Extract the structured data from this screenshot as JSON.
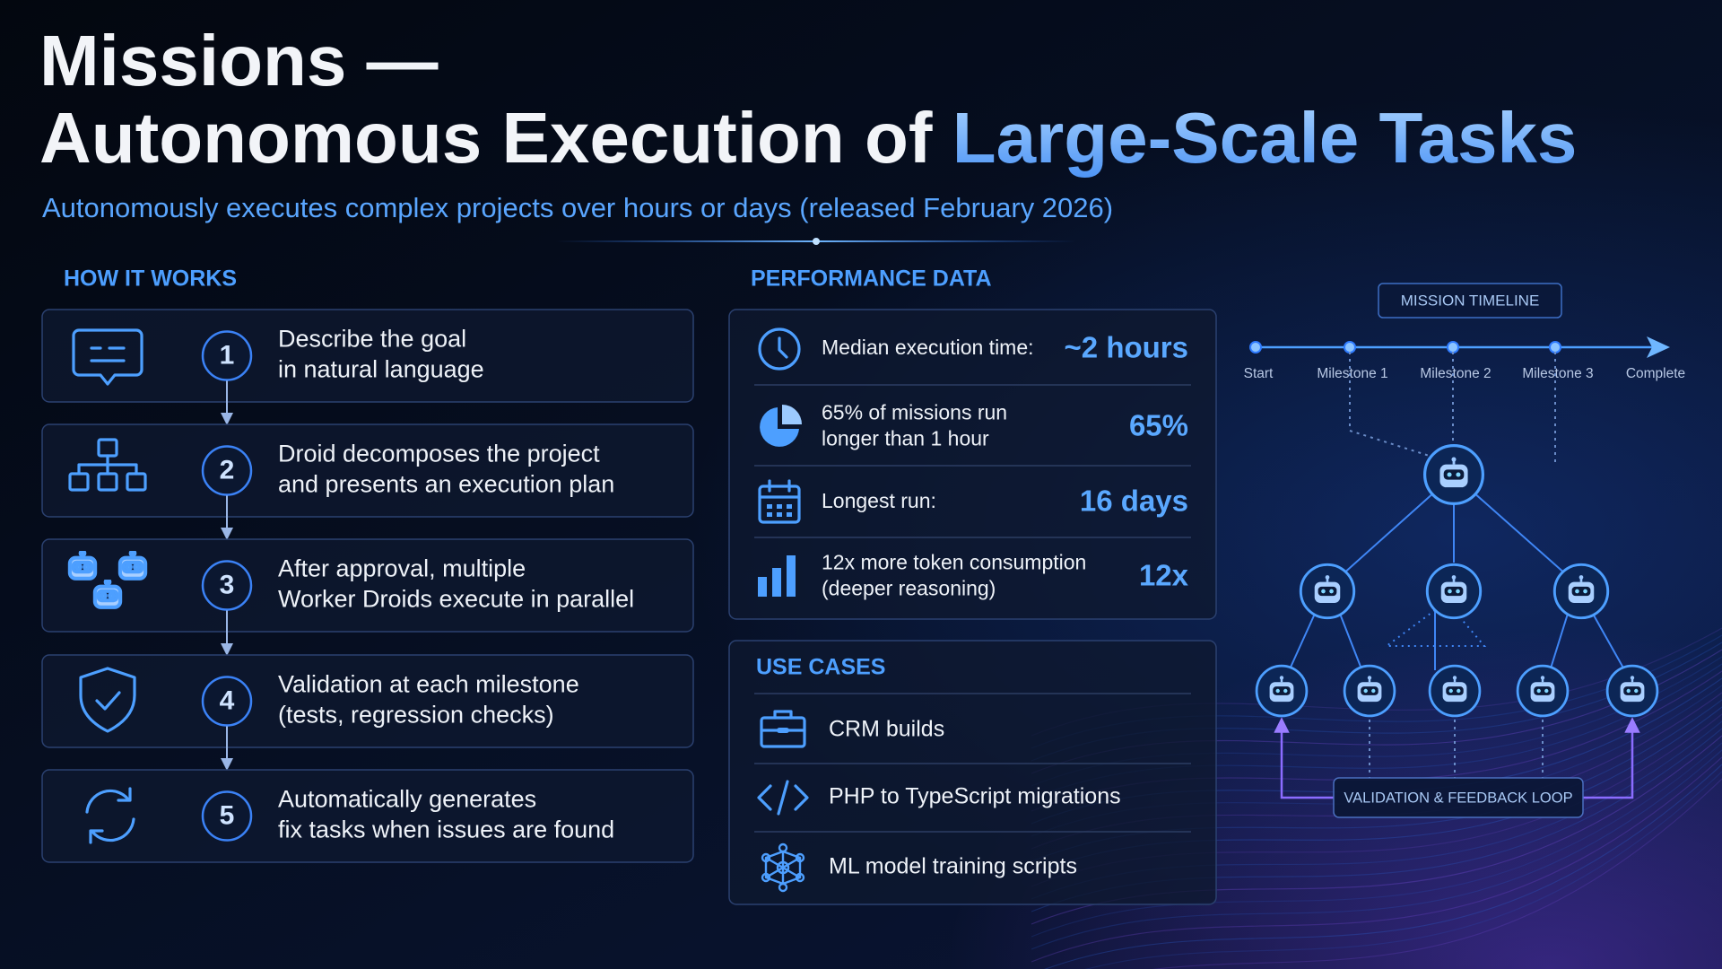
{
  "title_line1": "Missions —",
  "title_line2": "Autonomous Execution of ",
  "title_highlight": "Large-Scale Tasks",
  "subtitle": "Autonomously executes complex projects over hours or days (released February 2026)",
  "how_it_works": {
    "heading": "HOW IT WORKS",
    "steps": [
      {
        "number": 1,
        "lines": [
          "Describe the goal",
          "in natural language"
        ]
      },
      {
        "number": 2,
        "lines": [
          "Droid decomposes the project",
          "and presents an execution plan"
        ]
      },
      {
        "number": 3,
        "lines": [
          "After approval, multiple",
          "Worker Droids execute in parallel"
        ]
      },
      {
        "number": 4,
        "lines": [
          "Validation at each milestone",
          "(tests, regression checks)"
        ]
      },
      {
        "number": 5,
        "lines": [
          "Automatically generates",
          "fix tasks when issues are found"
        ]
      }
    ]
  },
  "performance": {
    "heading": "PERFORMANCE DATA",
    "metrics": [
      {
        "lines": [
          "Median execution time:"
        ],
        "value": "~2 hours"
      },
      {
        "lines": [
          "65% of missions run",
          "longer than 1 hour"
        ],
        "value": "65%"
      },
      {
        "lines": [
          "Longest run:"
        ],
        "value": "16 days"
      },
      {
        "lines": [
          "12x more token consumption",
          "(deeper reasoning)"
        ],
        "value": "12x"
      }
    ]
  },
  "use_cases": {
    "heading": "USE CASES",
    "items": [
      "CRM builds",
      "PHP to TypeScript migrations",
      "ML model training scripts"
    ]
  },
  "timeline": {
    "heading": "MISSION TIMELINE",
    "milestones": [
      "Start",
      "Milestone 1",
      "Milestone 2",
      "Milestone 3",
      "Complete"
    ],
    "loop_label": "VALIDATION & FEEDBACK LOOP"
  }
}
